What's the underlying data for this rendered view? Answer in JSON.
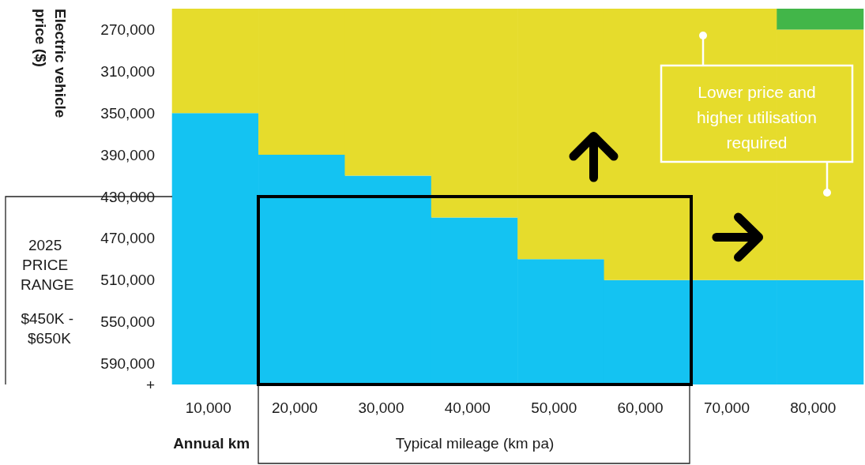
{
  "chart_data": {
    "type": "bar",
    "ylabel": "Electric vehicle price ($)",
    "xlabel": "Annual km",
    "annotations": [
      "Lower price and higher utilisation required",
      "2025 PRICE RANGE\n$450K - $650K",
      "Typical mileage (km pa)"
    ],
    "categories": [
      "10,000",
      "20,000",
      "30,000",
      "40,000",
      "50,000",
      "60,000",
      "70,000",
      "80,000"
    ],
    "series": [
      {
        "color": "#14c3f2",
        "base": [
          350000,
          390000,
          410000,
          450000,
          490000,
          510000,
          510000,
          510000
        ],
        "values": [
          260000,
          220000,
          200000,
          160000,
          120000,
          100000,
          100000,
          100000
        ]
      },
      {
        "color": "#e6dc2c",
        "base": [
          250000,
          250000,
          250000,
          250000,
          250000,
          250000,
          250000,
          270000
        ],
        "values": [
          100000,
          140000,
          160000,
          200000,
          240000,
          260000,
          260000,
          240000
        ]
      },
      {
        "color": "#42b649",
        "base": [
          null,
          null,
          null,
          null,
          null,
          null,
          null,
          250000
        ],
        "values": [
          null,
          null,
          null,
          null,
          null,
          null,
          null,
          20000
        ]
      }
    ],
    "ylim": [
      610000,
      250000
    ],
    "yticks": [
      {
        "value": 270000,
        "label": "270,000"
      },
      {
        "value": 310000,
        "label": "310,000"
      },
      {
        "value": 350000,
        "label": "350,000"
      },
      {
        "value": 390000,
        "label": "390,000"
      },
      {
        "value": 430000,
        "label": "430,000"
      },
      {
        "value": 470000,
        "label": "470,000"
      },
      {
        "value": 510000,
        "label": "510,000"
      },
      {
        "value": 550000,
        "label": "550,000"
      },
      {
        "value": 590000,
        "label": "590,000"
      },
      {
        "value": 610000,
        "label": "+"
      }
    ]
  }
}
